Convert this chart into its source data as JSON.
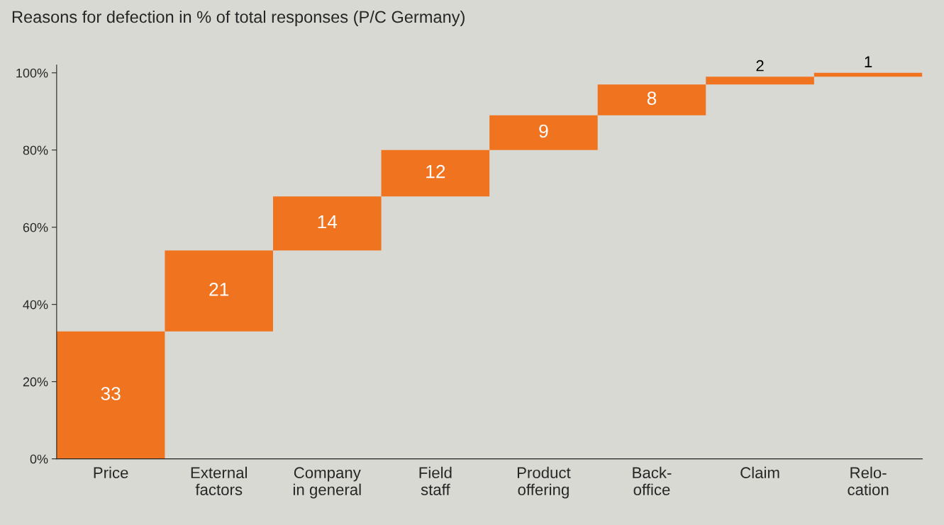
{
  "chart_data": {
    "type": "bar",
    "title": "Reasons for defection in % of total responses (P/C Germany)",
    "categories": [
      "Price",
      "External\nfactors",
      "Company\nin general",
      "Field\nstaff",
      "Product\noffering",
      "Back-\noffice",
      "Claim",
      "Relo-\ncation"
    ],
    "values": [
      33,
      21,
      14,
      12,
      9,
      8,
      2,
      1
    ],
    "base": [
      0,
      33,
      54,
      68,
      80,
      89,
      97,
      99
    ],
    "color": "#f07320",
    "ylim": [
      0,
      102
    ],
    "yticks": [
      {
        "value": 0,
        "label": "0%"
      },
      {
        "value": 20,
        "label": "20%"
      },
      {
        "value": 40,
        "label": "40%"
      },
      {
        "value": 60,
        "label": "60%"
      },
      {
        "value": 80,
        "label": "80%"
      },
      {
        "value": 100,
        "label": "100%"
      }
    ],
    "data_labels": true,
    "grid": false,
    "legend": false
  }
}
